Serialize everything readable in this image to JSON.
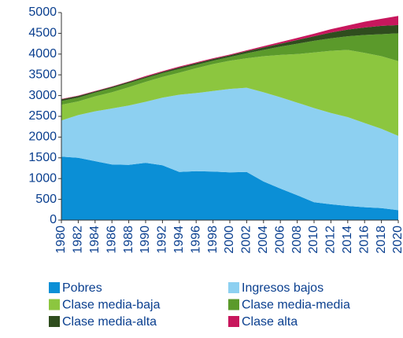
{
  "chart_data": {
    "type": "stacked_area",
    "x": [
      1980,
      1982,
      1984,
      1986,
      1988,
      1990,
      1992,
      1994,
      1996,
      1998,
      2000,
      2002,
      2004,
      2006,
      2008,
      2010,
      2012,
      2014,
      2016,
      2018,
      2020
    ],
    "series": [
      {
        "name": "Pobres",
        "color": "#0b8fd6",
        "values": [
          1530,
          1500,
          1420,
          1340,
          1330,
          1380,
          1320,
          1160,
          1180,
          1170,
          1150,
          1160,
          930,
          760,
          600,
          430,
          380,
          340,
          310,
          290,
          240
        ]
      },
      {
        "name": "Ingresos bajos",
        "color": "#8dd0f1",
        "values": [
          870,
          1030,
          1200,
          1350,
          1430,
          1470,
          1630,
          1860,
          1880,
          1940,
          2010,
          2030,
          2150,
          2200,
          2230,
          2270,
          2200,
          2140,
          2030,
          1910,
          1790
        ]
      },
      {
        "name": "Clase media-baja",
        "color": "#8cc63f",
        "values": [
          380,
          330,
          360,
          390,
          440,
          480,
          500,
          530,
          600,
          650,
          680,
          710,
          870,
          1020,
          1170,
          1340,
          1500,
          1620,
          1690,
          1750,
          1800
        ]
      },
      {
        "name": "Clase media-media",
        "color": "#5b9a2b",
        "values": [
          90,
          90,
          90,
          100,
          100,
          90,
          90,
          90,
          80,
          80,
          90,
          120,
          150,
          200,
          250,
          280,
          300,
          330,
          430,
          530,
          670
        ]
      },
      {
        "name": "Clase media-alta",
        "color": "#2f4d1e",
        "values": [
          40,
          40,
          30,
          30,
          30,
          30,
          30,
          40,
          40,
          40,
          40,
          50,
          60,
          70,
          90,
          110,
          140,
          160,
          180,
          200,
          200
        ]
      },
      {
        "name": "Clase alta",
        "color": "#c8175d",
        "values": [
          10,
          10,
          10,
          10,
          10,
          20,
          20,
          20,
          20,
          20,
          20,
          20,
          30,
          40,
          50,
          60,
          80,
          100,
          140,
          170,
          220
        ]
      }
    ],
    "xlim": [
      1980,
      2020
    ],
    "xticks": [
      1980,
      1982,
      1984,
      1986,
      1988,
      1990,
      1992,
      1994,
      1996,
      1998,
      2000,
      2002,
      2004,
      2006,
      2008,
      2010,
      2012,
      2014,
      2016,
      2018,
      2020
    ],
    "ylim": [
      0,
      5000
    ],
    "yticks": [
      0,
      500,
      1000,
      1500,
      2000,
      2500,
      3000,
      3500,
      4000,
      4500,
      5000
    ]
  }
}
